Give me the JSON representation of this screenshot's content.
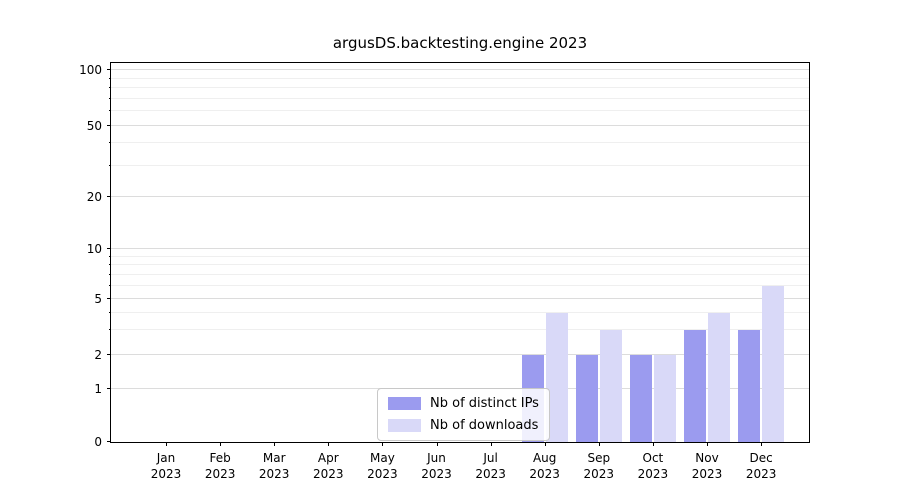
{
  "chart_data": {
    "type": "bar",
    "title": "argusDS.backtesting.engine 2023",
    "x_categories": [
      "Jan",
      "Feb",
      "Mar",
      "Apr",
      "May",
      "Jun",
      "Jul",
      "Aug",
      "Sep",
      "Oct",
      "Nov",
      "Dec"
    ],
    "x_year": "2023",
    "series": [
      {
        "name": "Nb of distinct IPs",
        "color": "#9b9bef",
        "values": [
          0,
          0,
          0,
          0,
          0,
          0,
          0,
          2,
          2,
          2,
          3,
          3
        ]
      },
      {
        "name": "Nb of downloads",
        "color": "#d9d9f8",
        "values": [
          0,
          0,
          0,
          0,
          0,
          0,
          0,
          4,
          3,
          2,
          4,
          6
        ]
      }
    ],
    "y_scale": "symlog",
    "y_ticks": [
      0,
      1,
      2,
      5,
      10,
      20,
      50,
      100
    ],
    "y_minor_ticks": [
      3,
      4,
      6,
      7,
      8,
      9,
      30,
      40,
      60,
      70,
      80,
      90
    ],
    "y_range": [
      0,
      110
    ],
    "grid": true,
    "legend_position": "bottom-center"
  }
}
